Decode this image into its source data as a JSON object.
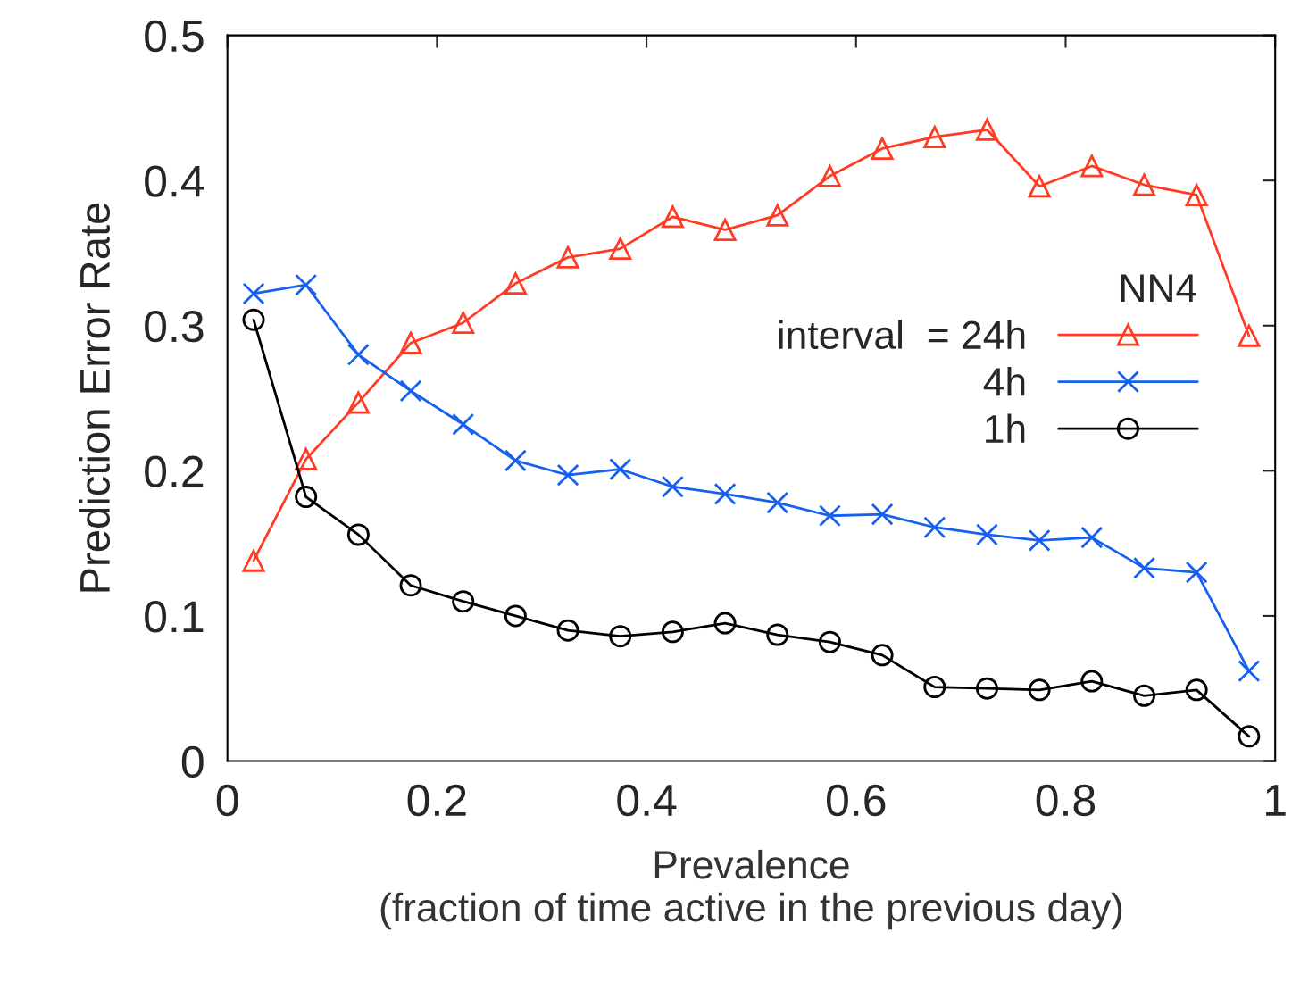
{
  "chart_data": {
    "type": "line",
    "xlabel": "Prevalence\n(fraction of time active in the previous day)",
    "ylabel": "Prediction Error Rate",
    "legend_title": "NN4",
    "legend": "right",
    "x": [
      0.025,
      0.075,
      0.125,
      0.175,
      0.225,
      0.275,
      0.325,
      0.375,
      0.425,
      0.475,
      0.525,
      0.575,
      0.625,
      0.675,
      0.725,
      0.775,
      0.825,
      0.875,
      0.925,
      0.975
    ],
    "series": [
      {
        "name": "interval  = 24h",
        "color": "#ff3b24",
        "marker": "triangle",
        "values": [
          0.138,
          0.208,
          0.247,
          0.288,
          0.302,
          0.329,
          0.347,
          0.353,
          0.375,
          0.366,
          0.376,
          0.403,
          0.422,
          0.43,
          0.435,
          0.396,
          0.41,
          0.397,
          0.39,
          0.293
        ]
      },
      {
        "name": "4h",
        "color": "#1560f0",
        "marker": "cross",
        "values": [
          0.322,
          0.328,
          0.28,
          0.255,
          0.232,
          0.207,
          0.197,
          0.201,
          0.189,
          0.184,
          0.178,
          0.169,
          0.17,
          0.161,
          0.156,
          0.152,
          0.154,
          0.133,
          0.13,
          0.062
        ]
      },
      {
        "name": "1h",
        "color": "#000000",
        "marker": "circle",
        "values": [
          0.304,
          0.182,
          0.156,
          0.121,
          0.11,
          0.1,
          0.09,
          0.086,
          0.089,
          0.095,
          0.087,
          0.082,
          0.073,
          0.051,
          0.05,
          0.049,
          0.055,
          0.045,
          0.049,
          0.017
        ]
      }
    ],
    "xlim": [
      0,
      1
    ],
    "xticks": [
      0,
      0.2,
      0.4,
      0.6,
      0.8,
      1
    ],
    "ylim": [
      0,
      0.5
    ],
    "yticks": [
      0,
      0.1,
      0.2,
      0.3,
      0.4,
      0.5
    ],
    "grid": false,
    "line_style": "solid"
  }
}
